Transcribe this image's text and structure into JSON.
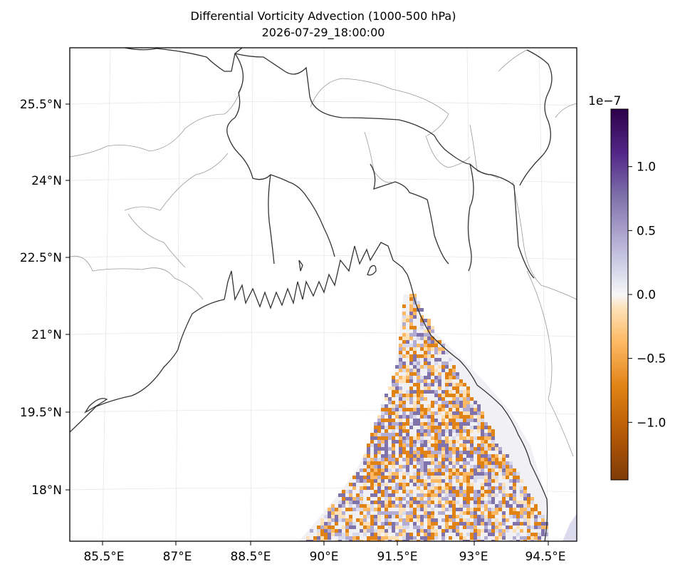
{
  "title": "Differential Vorticity Advection (1000-500 hPa)",
  "subtitle": "2026-07-29_18:00:00",
  "map": {
    "lon_range": [
      84.5,
      95.5
    ],
    "lat_range": [
      17.0,
      26.5
    ],
    "lon_ticks": [
      "85.5°E",
      "87°E",
      "88.5°E",
      "90°E",
      "91.5°E",
      "93°E",
      "94.5°E"
    ],
    "lat_ticks": [
      "25.5°N",
      "24°N",
      "22.5°N",
      "21°N",
      "19.5°N",
      "18°N"
    ],
    "colormap": "PuOr",
    "field": "differential vorticity advection over Bay of Bengal (south-east sector)",
    "coastline_color": "#333333",
    "border_color": "#999999"
  },
  "colorbar": {
    "scale_label": "1e−7",
    "ticks": [
      "1.0",
      "0.5",
      "0.0",
      "−0.5",
      "−1.0"
    ],
    "tick_values": [
      1.0,
      0.5,
      0.0,
      -0.5,
      -1.0
    ],
    "range": [
      -1.45,
      1.45
    ],
    "colors": [
      "#7f3b08",
      "#e08214",
      "#fdb863",
      "#fee0b6",
      "#f7f7f7",
      "#d8daeb",
      "#b2abd2",
      "#8073ac",
      "#2d004b"
    ]
  }
}
